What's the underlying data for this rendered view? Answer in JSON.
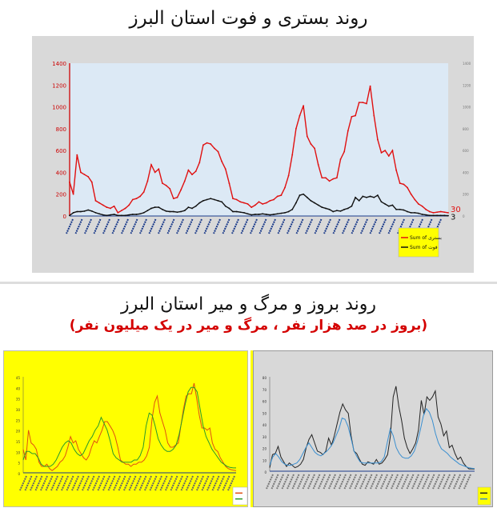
{
  "titles": {
    "top": "روند بستری و فوت استان البرز",
    "bottom": "روند بروز و مرگ و میر استان البرز",
    "bottom_sub": "(بروز در صد هزار نفر ، مرگ و میر در یک میلیون نفر)"
  },
  "chart_data": [
    {
      "type": "line",
      "background": "#dce9f5",
      "ylim": [
        0,
        1400
      ],
      "yticks": [
        0,
        200,
        400,
        600,
        800,
        1000,
        1200,
        1400
      ],
      "grid": false,
      "legend": "bottom-right",
      "legend_bg": "#ffff00",
      "series": [
        {
          "name": "Sum of بستری",
          "color": "#e01010",
          "end_label": "30",
          "values": [
            310,
            200,
            560,
            400,
            380,
            360,
            310,
            140,
            120,
            100,
            80,
            70,
            90,
            30,
            50,
            70,
            100,
            150,
            160,
            180,
            220,
            320,
            470,
            400,
            430,
            300,
            280,
            250,
            160,
            170,
            240,
            320,
            420,
            380,
            410,
            490,
            650,
            670,
            660,
            620,
            590,
            500,
            430,
            300,
            160,
            150,
            130,
            120,
            110,
            80,
            100,
            130,
            110,
            120,
            140,
            150,
            180,
            190,
            260,
            370,
            560,
            800,
            920,
            1010,
            730,
            660,
            620,
            470,
            350,
            350,
            320,
            340,
            350,
            520,
            590,
            780,
            910,
            920,
            1040,
            1040,
            1030,
            1190,
            920,
            700,
            580,
            600,
            550,
            600,
            420,
            300,
            290,
            260,
            200,
            150,
            110,
            90,
            60,
            40,
            30,
            35,
            40,
            35,
            30
          ]
        },
        {
          "name": "Sum of فوت",
          "color": "#111111",
          "end_label": "3",
          "values": [
            5,
            30,
            40,
            40,
            45,
            55,
            45,
            30,
            20,
            10,
            5,
            10,
            15,
            5,
            5,
            5,
            10,
            15,
            15,
            20,
            30,
            50,
            70,
            80,
            80,
            60,
            45,
            40,
            40,
            35,
            40,
            50,
            80,
            70,
            90,
            120,
            140,
            150,
            160,
            150,
            140,
            130,
            90,
            70,
            40,
            40,
            35,
            30,
            20,
            10,
            15,
            15,
            20,
            15,
            10,
            15,
            20,
            25,
            30,
            40,
            60,
            120,
            190,
            200,
            170,
            140,
            120,
            100,
            80,
            70,
            60,
            40,
            50,
            45,
            60,
            70,
            90,
            170,
            140,
            180,
            170,
            180,
            170,
            190,
            130,
            110,
            90,
            100,
            60,
            60,
            55,
            40,
            30,
            30,
            25,
            15,
            10,
            5,
            5,
            5,
            5,
            5,
            3
          ]
        }
      ]
    },
    {
      "type": "line",
      "background": "#ffff00",
      "ylim": [
        0,
        45
      ],
      "yticks": [
        0,
        5,
        10,
        15,
        20,
        25,
        30,
        35,
        40,
        45
      ],
      "legend": "bottom-right",
      "series": [
        {
          "color": "#e05010",
          "values": [
            11,
            6,
            20,
            14,
            13,
            11,
            5,
            3,
            3,
            4,
            2,
            1,
            2,
            3,
            5,
            6,
            8,
            12,
            17,
            14,
            15,
            11,
            9,
            7,
            6,
            8,
            12,
            15,
            14,
            17,
            20,
            24,
            24,
            22,
            20,
            17,
            12,
            6,
            5,
            4,
            4,
            3,
            4,
            4,
            5,
            5,
            6,
            8,
            12,
            25,
            33,
            36,
            28,
            24,
            20,
            14,
            12,
            12,
            13,
            14,
            22,
            30,
            36,
            37,
            37,
            42,
            35,
            27,
            21,
            21,
            20,
            21,
            14,
            11,
            10,
            7,
            5,
            3,
            2,
            1.5,
            1.2,
            1.0
          ]
        },
        {
          "color": "#2a9a2a",
          "values": [
            6,
            10,
            10,
            9,
            9,
            7,
            4,
            3,
            3,
            3,
            4,
            6,
            9,
            12,
            14,
            15,
            14,
            11,
            9,
            8,
            9,
            12,
            15,
            17,
            20,
            22,
            26,
            23,
            20,
            15,
            9,
            7,
            6,
            5,
            5,
            5,
            5,
            6,
            6,
            8,
            12,
            22,
            28,
            27,
            22,
            16,
            13,
            11,
            10,
            10,
            11,
            13,
            18,
            25,
            32,
            38,
            40,
            40,
            38,
            30,
            22,
            17,
            14,
            11,
            9,
            7,
            5,
            4,
            3,
            2.5,
            2.3,
            2.27
          ]
        }
      ]
    },
    {
      "type": "line",
      "background": "#d8d8d8",
      "ylim": [
        0,
        80
      ],
      "yticks": [
        0,
        10,
        20,
        30,
        40,
        50,
        60,
        70,
        80
      ],
      "legend": "bottom-right",
      "series": [
        {
          "color": "#222222",
          "values": [
            3,
            14,
            15,
            21,
            12,
            8,
            4,
            7,
            5,
            3,
            4,
            6,
            10,
            20,
            27,
            31,
            24,
            17,
            16,
            14,
            17,
            28,
            22,
            30,
            40,
            50,
            57,
            52,
            49,
            30,
            17,
            15,
            10,
            6,
            5,
            8,
            7,
            6,
            10,
            6,
            7,
            10,
            14,
            30,
            63,
            72,
            55,
            43,
            28,
            20,
            15,
            19,
            24,
            35,
            60,
            48,
            63,
            60,
            63,
            68,
            46,
            40,
            30,
            34,
            20,
            22,
            15,
            10,
            12,
            7,
            4,
            2,
            2,
            1.8
          ]
        },
        {
          "color": "#3a8fd0",
          "values": [
            5,
            12,
            15,
            12,
            8,
            6,
            5,
            5,
            6,
            7,
            10,
            15,
            20,
            24,
            20,
            16,
            14,
            13,
            15,
            17,
            20,
            24,
            30,
            36,
            45,
            44,
            38,
            28,
            17,
            12,
            8,
            7,
            7,
            7,
            7,
            7,
            7,
            8,
            12,
            24,
            36,
            30,
            20,
            15,
            12,
            11,
            11,
            13,
            17,
            25,
            35,
            47,
            53,
            50,
            43,
            32,
            24,
            19,
            17,
            15,
            12,
            10,
            8,
            6,
            5,
            4,
            3,
            2.5,
            2.25
          ]
        }
      ]
    }
  ]
}
